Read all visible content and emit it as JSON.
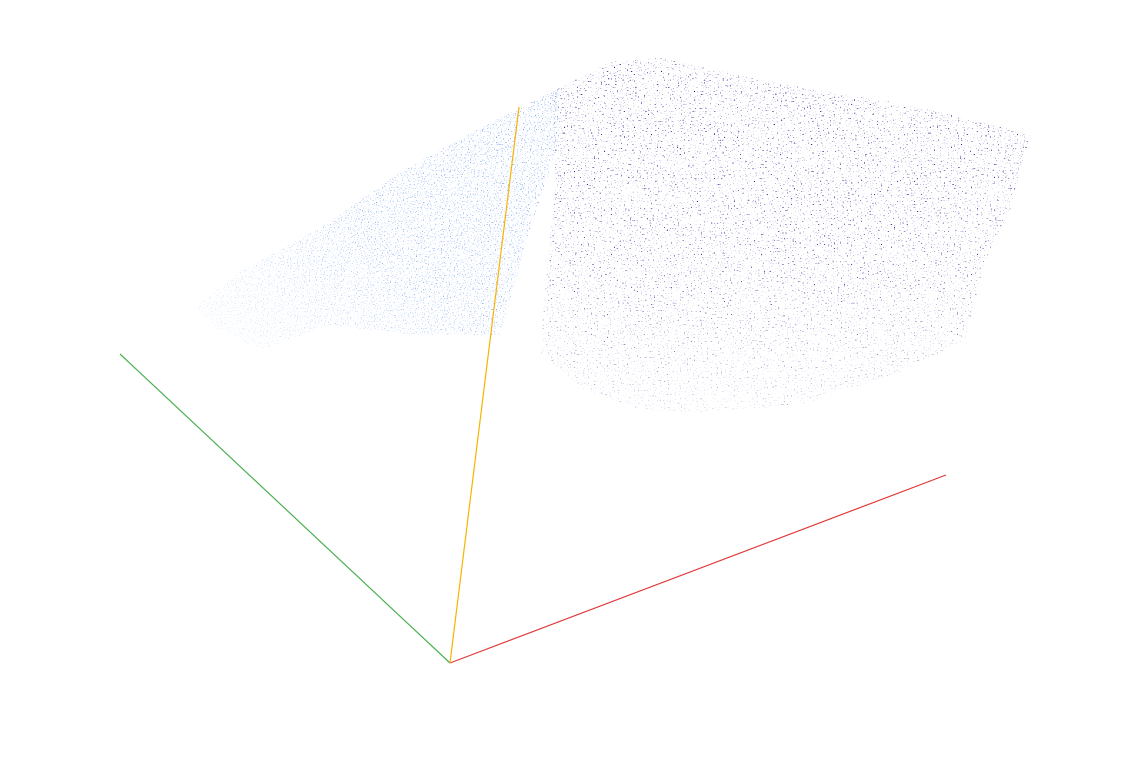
{
  "scene": {
    "background": "#ffffff",
    "axes": {
      "x": {
        "color": "#e03a3a"
      },
      "y": {
        "color": "#4caf50"
      },
      "z": {
        "color": "#f5b400"
      }
    },
    "clusters": [
      {
        "color": "#6495ed"
      },
      {
        "color": "#00007f"
      }
    ]
  }
}
